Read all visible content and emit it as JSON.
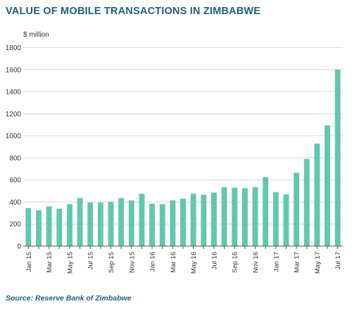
{
  "title": "VALUE OF MOBILE TRANSACTIONS IN ZIMBABWE",
  "source": "Source: Reserve Bank of Zimbabwe",
  "chart_data": {
    "type": "bar",
    "title": "VALUE OF MOBILE TRANSACTIONS IN ZIMBABWE",
    "ylabel": "$ million",
    "xlabel": "",
    "ylim": [
      0,
      1800
    ],
    "yticks": [
      0,
      200,
      400,
      600,
      800,
      1000,
      1200,
      1400,
      1600,
      1800
    ],
    "grid": true,
    "legend": "none",
    "categories": [
      "Jan 15",
      "Feb 15",
      "Mar 15",
      "Apr 15",
      "May 15",
      "Jun 15",
      "Jul 15",
      "Aug 15",
      "Sep 15",
      "Oct 15",
      "Nov 15",
      "Dec 15",
      "Jan 16",
      "Feb 16",
      "Mar 16",
      "Apr 16",
      "May 16",
      "Jun 16",
      "Jul 16",
      "Aug 16",
      "Sep 16",
      "Oct 16",
      "Nov 16",
      "Dec 16",
      "Jan 17",
      "Feb 17",
      "Mar 17",
      "Apr 17",
      "May 17",
      "Jun 17",
      "Jul 17"
    ],
    "tick_labels": [
      "Jan 15",
      "Mar 15",
      "May 15",
      "Jul 15",
      "Sep 15",
      "Nov 15",
      "Jan 16",
      "Mar 16",
      "May 16",
      "Jul 16",
      "Sep 16",
      "Nov 16",
      "Jan 17",
      "Mar 17",
      "May 17",
      "Jul 17"
    ],
    "values": [
      345,
      325,
      360,
      340,
      380,
      435,
      395,
      395,
      400,
      435,
      415,
      475,
      385,
      380,
      415,
      430,
      475,
      465,
      485,
      535,
      530,
      525,
      535,
      625,
      490,
      470,
      665,
      790,
      930,
      1095,
      1600
    ],
    "bar_color": "#62c7ae",
    "grid_color": "#d8d8d8",
    "axis_color": "#555555"
  }
}
